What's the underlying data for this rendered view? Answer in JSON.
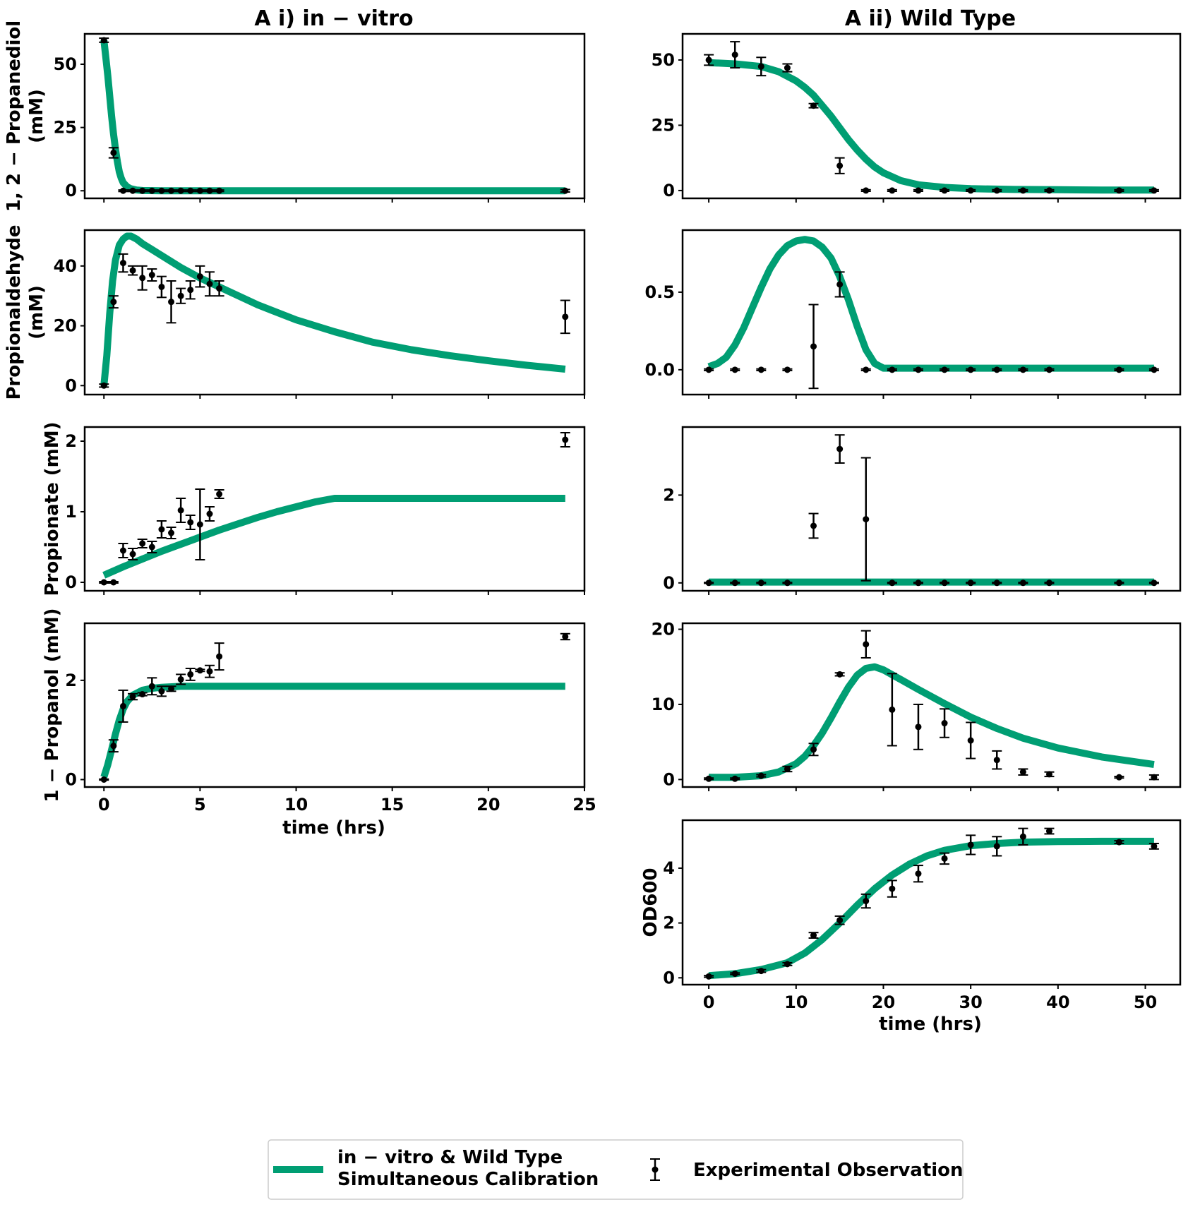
{
  "figure": {
    "column_titles": [
      "A i) in − vitro",
      "A ii) Wild Type"
    ],
    "xlabel": "time (hrs)",
    "colors": {
      "simulation": "#009E73",
      "observation": "#000000"
    },
    "legend": {
      "placement": "bottom-center",
      "simulation_line1": "in − vitro & Wild Type",
      "simulation_line2": "Simultaneous Calibration",
      "observation": "Experimental Observation"
    }
  },
  "chart_data": [
    {
      "id": "invitro-propanediol",
      "type": "line",
      "column": "A i) in − vitro",
      "ylabel": [
        "1, 2 − Propanediol",
        "(mM)"
      ],
      "xlim": [
        -1,
        25
      ],
      "ylim": [
        -3,
        62
      ],
      "xticks": [
        0,
        5,
        10,
        15,
        20,
        25
      ],
      "yticks": [
        0,
        25,
        50
      ],
      "ytick_labels": [
        "0",
        "25",
        "50"
      ],
      "show_xtick_labels": false,
      "observations": {
        "x": [
          0,
          0.5,
          1,
          1.5,
          2,
          2.5,
          3,
          3.5,
          4,
          4.5,
          5,
          5.5,
          6,
          24
        ],
        "y": [
          59.5,
          15,
          0,
          0,
          0,
          0,
          0,
          0,
          0,
          0,
          0,
          0,
          0,
          0
        ],
        "err": [
          0.8,
          2,
          0.3,
          0.3,
          0.3,
          0.3,
          0.3,
          0.3,
          0.3,
          0.3,
          0.3,
          0.3,
          0.3,
          0.5
        ]
      },
      "simulation": {
        "x": [
          0,
          0.1,
          0.2,
          0.3,
          0.4,
          0.5,
          0.6,
          0.7,
          0.8,
          0.9,
          1.0,
          1.2,
          1.4,
          1.7,
          2,
          3,
          5,
          8,
          12,
          16,
          20,
          24
        ],
        "y": [
          59.5,
          52.5,
          45.5,
          37.5,
          29.5,
          22.5,
          16.5,
          11.5,
          7.5,
          5,
          3.2,
          1.6,
          0.8,
          0.3,
          0.1,
          0,
          0,
          0,
          0,
          0,
          0,
          0
        ]
      }
    },
    {
      "id": "wt-propanediol",
      "type": "line",
      "column": "A ii) Wild Type",
      "ylabel": [],
      "xlim": [
        -3,
        54
      ],
      "ylim": [
        -3,
        60
      ],
      "xticks": [
        0,
        10,
        20,
        30,
        40,
        50
      ],
      "yticks": [
        0,
        25,
        50
      ],
      "ytick_labels": [
        "0",
        "25",
        "50"
      ],
      "show_xtick_labels": false,
      "observations": {
        "x": [
          0,
          3,
          6,
          9,
          12,
          15,
          18,
          21,
          24,
          27,
          30,
          33,
          36,
          39,
          47,
          51
        ],
        "y": [
          50,
          52,
          47.5,
          47,
          32.5,
          9.5,
          0,
          0,
          0,
          0,
          0,
          0,
          0,
          0,
          0,
          0
        ],
        "err": [
          2,
          5,
          3.5,
          1.5,
          0.8,
          3,
          0.3,
          0.3,
          0.3,
          0.3,
          0.3,
          0.3,
          0.3,
          0.3,
          0.3,
          0.3
        ]
      },
      "simulation": {
        "x": [
          0,
          3,
          6,
          8,
          10,
          11,
          12,
          13,
          14,
          15,
          16,
          17,
          18,
          19,
          20,
          22,
          24,
          27,
          30,
          35,
          40,
          45,
          51
        ],
        "y": [
          49,
          48.5,
          47.5,
          45.5,
          42,
          39.5,
          36.5,
          32.5,
          28.5,
          24,
          19.5,
          15.5,
          12,
          9,
          6.8,
          3.8,
          2.2,
          1.2,
          0.7,
          0.4,
          0.3,
          0.2,
          0.2
        ]
      }
    },
    {
      "id": "invitro-propionaldehyde",
      "type": "line",
      "column": "A i) in − vitro",
      "ylabel": [
        "Propionaldehyde",
        "(mM)"
      ],
      "xlim": [
        -1,
        25
      ],
      "ylim": [
        -3,
        52
      ],
      "xticks": [
        0,
        5,
        10,
        15,
        20,
        25
      ],
      "yticks": [
        0,
        20,
        40
      ],
      "ytick_labels": [
        "0",
        "20",
        "40"
      ],
      "show_xtick_labels": false,
      "observations": {
        "x": [
          0,
          0.5,
          1,
          1.5,
          2,
          2.5,
          3,
          3.5,
          4,
          4.5,
          5,
          5.5,
          6,
          24
        ],
        "y": [
          0,
          28,
          41,
          38.5,
          36,
          37,
          33,
          28,
          30,
          32,
          36.5,
          34,
          32.5,
          23
        ],
        "err": [
          0.5,
          2,
          3,
          1.5,
          4,
          2,
          3.5,
          7,
          2.5,
          3,
          3.5,
          4,
          2.5,
          5.5
        ]
      },
      "simulation": {
        "x": [
          0,
          0.15,
          0.3,
          0.45,
          0.6,
          0.8,
          1,
          1.2,
          1.4,
          1.7,
          2,
          2.5,
          3,
          4,
          5,
          6,
          8,
          10,
          12,
          14,
          16,
          18,
          20,
          22,
          24
        ],
        "y": [
          0,
          10,
          24,
          35,
          42,
          47,
          49,
          50,
          50,
          49,
          47.5,
          45.5,
          43.5,
          39.5,
          36,
          33,
          27,
          22,
          18,
          14.5,
          12,
          10,
          8.3,
          6.8,
          5.5
        ]
      }
    },
    {
      "id": "wt-propionaldehyde",
      "type": "line",
      "column": "A ii) Wild Type",
      "ylabel": [],
      "xlim": [
        -3,
        54
      ],
      "ylim": [
        -0.16,
        0.9
      ],
      "xticks": [
        0,
        10,
        20,
        30,
        40,
        50
      ],
      "yticks": [
        0,
        0.5
      ],
      "ytick_labels": [
        "0.0",
        "0.5"
      ],
      "show_xtick_labels": false,
      "observations": {
        "x": [
          0,
          3,
          6,
          9,
          12,
          15,
          18,
          21,
          24,
          27,
          30,
          33,
          36,
          39,
          47,
          51
        ],
        "y": [
          0,
          0,
          0,
          0,
          0.15,
          0.55,
          0,
          0,
          0,
          0,
          0,
          0,
          0,
          0,
          0,
          0
        ],
        "err": [
          0.005,
          0.005,
          0.005,
          0.005,
          0.27,
          0.08,
          0.005,
          0.005,
          0.005,
          0.005,
          0.005,
          0.005,
          0.005,
          0.005,
          0.005,
          0.005
        ]
      },
      "simulation": {
        "x": [
          0,
          1,
          2,
          3,
          4,
          5,
          6,
          7,
          8,
          9,
          10,
          11,
          12,
          13,
          14,
          15,
          16,
          17,
          18,
          19,
          20,
          22,
          25,
          30,
          35,
          40,
          45,
          51
        ],
        "y": [
          0.02,
          0.04,
          0.08,
          0.16,
          0.27,
          0.4,
          0.53,
          0.65,
          0.74,
          0.8,
          0.83,
          0.84,
          0.83,
          0.79,
          0.72,
          0.6,
          0.45,
          0.28,
          0.13,
          0.04,
          0.01,
          0.01,
          0.01,
          0.01,
          0.01,
          0.01,
          0.01,
          0.01
        ]
      }
    },
    {
      "id": "invitro-propionate",
      "type": "line",
      "column": "A i) in − vitro",
      "ylabel": [
        "Propionate (mM)"
      ],
      "xlim": [
        -1,
        25
      ],
      "ylim": [
        -0.12,
        2.2
      ],
      "xticks": [
        0,
        5,
        10,
        15,
        20,
        25
      ],
      "yticks": [
        0,
        1,
        2
      ],
      "ytick_labels": [
        "0",
        "1",
        "2"
      ],
      "show_xtick_labels": false,
      "observations": {
        "x": [
          0,
          0.5,
          1,
          1.5,
          2,
          2.5,
          3,
          3.5,
          4,
          4.5,
          5,
          5.5,
          6,
          24
        ],
        "y": [
          0,
          0,
          0.45,
          0.4,
          0.55,
          0.5,
          0.75,
          0.7,
          1.02,
          0.85,
          0.82,
          0.97,
          1.25,
          2.02
        ],
        "err": [
          0.01,
          0.01,
          0.1,
          0.08,
          0.06,
          0.08,
          0.12,
          0.08,
          0.17,
          0.1,
          0.5,
          0.1,
          0.06,
          0.1
        ]
      },
      "simulation": {
        "x": [
          0,
          1,
          2,
          3,
          4,
          5,
          6,
          7,
          8,
          9,
          10,
          11,
          12,
          14,
          16,
          18,
          20,
          22,
          24
        ],
        "y": [
          0.1,
          0.22,
          0.33,
          0.44,
          0.54,
          0.64,
          0.74,
          0.83,
          0.92,
          1.0,
          1.07,
          1.14,
          1.19,
          1.19,
          1.19,
          1.19,
          1.19,
          1.19,
          1.19
        ]
      }
    },
    {
      "id": "wt-propionate",
      "type": "line",
      "column": "A ii) Wild Type",
      "ylabel": [],
      "xlim": [
        -3,
        54
      ],
      "ylim": [
        -0.18,
        3.55
      ],
      "xticks": [
        0,
        10,
        20,
        30,
        40,
        50
      ],
      "yticks": [
        0,
        2
      ],
      "ytick_labels": [
        "0",
        "2"
      ],
      "show_xtick_labels": false,
      "observations": {
        "x": [
          0,
          3,
          6,
          9,
          12,
          15,
          18,
          21,
          24,
          27,
          30,
          33,
          36,
          39,
          47,
          51
        ],
        "y": [
          0,
          0,
          0,
          0,
          1.3,
          3.05,
          1.45,
          0,
          0,
          0,
          0,
          0,
          0,
          0,
          0,
          0
        ],
        "err": [
          0.01,
          0.01,
          0.01,
          0.01,
          0.28,
          0.32,
          1.4,
          0.01,
          0.01,
          0.01,
          0.01,
          0.01,
          0.01,
          0.01,
          0.01,
          0.01
        ]
      },
      "simulation": {
        "x": [
          0,
          10,
          20,
          30,
          40,
          51
        ],
        "y": [
          0.02,
          0.02,
          0.02,
          0.02,
          0.02,
          0.02
        ]
      }
    },
    {
      "id": "invitro-propanol",
      "type": "line",
      "column": "A i) in − vitro",
      "ylabel": [
        "1 − Propanol (mM)"
      ],
      "xlim": [
        -1,
        25
      ],
      "ylim": [
        -0.15,
        3.15
      ],
      "xticks": [
        0,
        5,
        10,
        15,
        20,
        25
      ],
      "yticks": [
        0,
        2
      ],
      "ytick_labels": [
        "0",
        "2"
      ],
      "xtick_labels": [
        "0",
        "5",
        "10",
        "15",
        "20",
        "25"
      ],
      "show_xtick_labels": true,
      "observations": {
        "x": [
          0,
          0.5,
          1,
          1.5,
          2,
          2.5,
          3,
          3.5,
          4,
          4.5,
          5,
          5.5,
          6,
          24
        ],
        "y": [
          0,
          0.68,
          1.48,
          1.67,
          1.72,
          1.88,
          1.78,
          1.83,
          2.02,
          2.12,
          2.2,
          2.18,
          2.48,
          2.88
        ],
        "err": [
          0.01,
          0.12,
          0.32,
          0.06,
          0.03,
          0.17,
          0.1,
          0.05,
          0.1,
          0.12,
          0.02,
          0.12,
          0.27,
          0.06
        ]
      },
      "simulation": {
        "x": [
          0,
          0.2,
          0.4,
          0.6,
          0.8,
          1,
          1.2,
          1.5,
          2,
          2.5,
          3,
          4,
          5,
          7,
          10,
          15,
          20,
          24
        ],
        "y": [
          0.05,
          0.3,
          0.6,
          0.92,
          1.2,
          1.42,
          1.57,
          1.7,
          1.8,
          1.84,
          1.86,
          1.88,
          1.88,
          1.88,
          1.88,
          1.88,
          1.88,
          1.88
        ]
      }
    },
    {
      "id": "wt-propanol",
      "type": "line",
      "column": "A ii) Wild Type",
      "ylabel": [],
      "xlim": [
        -3,
        54
      ],
      "ylim": [
        -1,
        20.8
      ],
      "xticks": [
        0,
        10,
        20,
        30,
        40,
        50
      ],
      "yticks": [
        0,
        10,
        20
      ],
      "ytick_labels": [
        "0",
        "10",
        "20"
      ],
      "show_xtick_labels": false,
      "observations": {
        "x": [
          0,
          3,
          6,
          9,
          12,
          15,
          18,
          21,
          24,
          27,
          30,
          33,
          36,
          39,
          47,
          51
        ],
        "y": [
          0.1,
          0.1,
          0.5,
          1.4,
          4,
          14,
          18,
          9.3,
          7,
          7.5,
          5.2,
          2.6,
          1,
          0.7,
          0.3,
          0.3
        ],
        "err": [
          0.1,
          0.1,
          0.15,
          0.35,
          0.8,
          0.2,
          1.8,
          4.8,
          3,
          1.9,
          2.4,
          1.2,
          0.4,
          0.3,
          0.1,
          0.3
        ]
      },
      "simulation": {
        "x": [
          0,
          3,
          6,
          8,
          10,
          11,
          12,
          13,
          14,
          15,
          16,
          17,
          18,
          19,
          20,
          22,
          24,
          27,
          30,
          33,
          36,
          40,
          45,
          51
        ],
        "y": [
          0.3,
          0.3,
          0.5,
          1,
          2.1,
          3.1,
          4.5,
          6.2,
          8.2,
          10.3,
          12.3,
          13.9,
          14.8,
          15,
          14.6,
          13.3,
          12,
          10.1,
          8.3,
          6.8,
          5.5,
          4.2,
          3,
          2
        ]
      }
    },
    {
      "id": "wt-od600",
      "type": "line",
      "column": "A ii) Wild Type",
      "ylabel": [
        "OD600"
      ],
      "xlim": [
        -3,
        54
      ],
      "ylim": [
        -0.25,
        5.75
      ],
      "xticks": [
        0,
        10,
        20,
        30,
        40,
        50
      ],
      "yticks": [
        0,
        2,
        4
      ],
      "ytick_labels": [
        "0",
        "2",
        "4"
      ],
      "xtick_labels": [
        "0",
        "10",
        "20",
        "30",
        "40",
        "50"
      ],
      "show_xtick_labels": true,
      "observations": {
        "x": [
          0,
          3,
          6,
          9,
          12,
          15,
          18,
          21,
          24,
          27,
          30,
          33,
          36,
          39,
          47,
          51
        ],
        "y": [
          0.05,
          0.15,
          0.25,
          0.5,
          1.55,
          2.1,
          2.8,
          3.25,
          3.8,
          4.35,
          4.85,
          4.8,
          5.15,
          5.35,
          4.95,
          4.8
        ],
        "err": [
          0.03,
          0.03,
          0.05,
          0.05,
          0.1,
          0.15,
          0.25,
          0.3,
          0.3,
          0.2,
          0.35,
          0.35,
          0.3,
          0.1,
          0.05,
          0.1
        ]
      },
      "simulation": {
        "x": [
          0,
          3,
          6,
          9,
          11,
          13,
          15,
          17,
          19,
          21,
          23,
          25,
          27,
          30,
          33,
          36,
          40,
          45,
          51
        ],
        "y": [
          0.08,
          0.15,
          0.3,
          0.55,
          0.9,
          1.4,
          2.0,
          2.65,
          3.25,
          3.75,
          4.15,
          4.45,
          4.65,
          4.82,
          4.9,
          4.95,
          4.97,
          4.98,
          4.98
        ]
      }
    }
  ]
}
